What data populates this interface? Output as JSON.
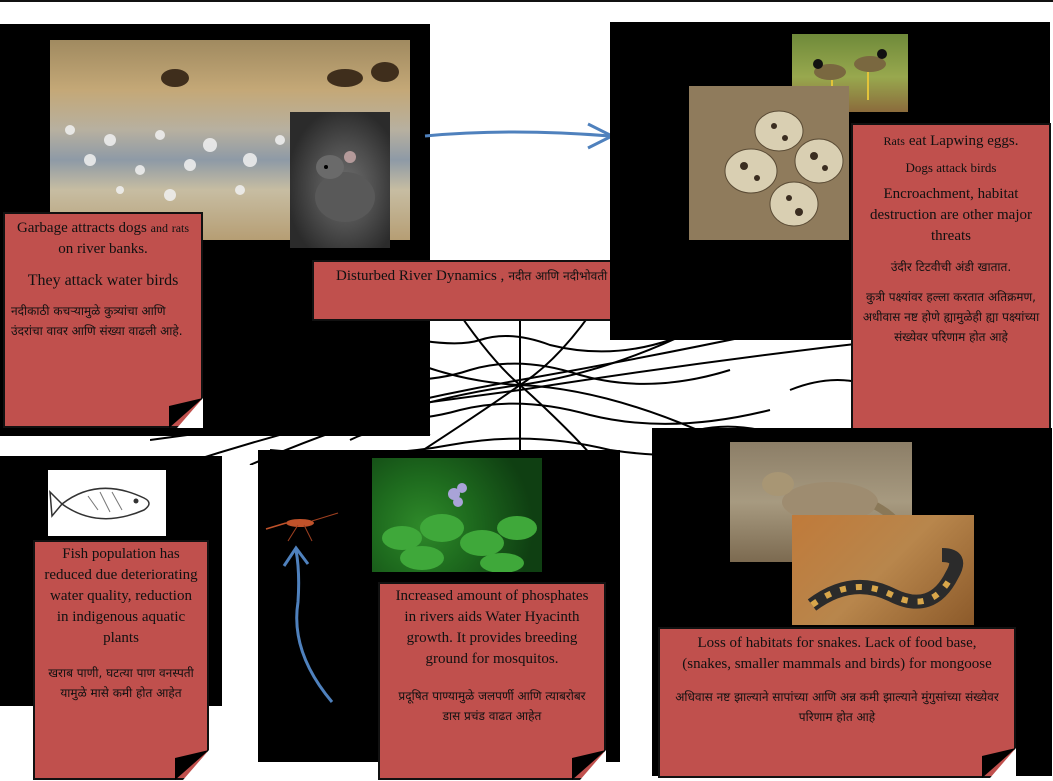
{
  "notes": {
    "garbage": {
      "en1_a": "Garbage attracts dogs",
      "en1_b": "and",
      "en1_c": "rats",
      "en1_d": "on river banks.",
      "en2": "They attack water birds",
      "mr": "नदीकाठी कचऱ्यामुळे कुत्र्यांचा आणि उंदरांचा वावर आणि संख्या वाढली आहे."
    },
    "river": {
      "en": "Disturbed River Dynamics ,",
      "mr": "नदीत आणि नदीभोवती होणारे बदल"
    },
    "lapwing": {
      "en1_a": "Rats",
      "en1_b": "eat Lapwing eggs.",
      "en2": "Dogs attack birds",
      "en3": "Encroachment, habitat destruction are other major threats",
      "mr1": "उंदीर टिटवीची अंडी खातात.",
      "mr2": "कुत्री पक्ष्यांवर हल्ला करतात अतिक्रमण, अधीवास नष्ट होणे ह्यामुळेही ह्या पक्ष्यांच्या संख्येवर परिणाम होत आहे"
    },
    "fish": {
      "en": "Fish population has reduced due deteriorating water quality, reduction in indigenous aquatic plants",
      "mr": "खराब पाणी, घटत्या पाण वनस्पती यामुळे मासे कमी होत आहेत"
    },
    "hyacinth": {
      "en": "Increased amount of phosphates in rivers aids Water Hyacinth growth. It provides breeding ground for mosquitos.",
      "mr": "प्रदूषित पाण्यामुळे जलपर्णी आणि त्याबरोबर डास प्रचंड वाढत आहेत"
    },
    "snake": {
      "en": "Loss of habitats for snakes. Lack of food base, (snakes, smaller mammals and birds) for mongoose",
      "mr": "अधिवास नष्ट झाल्याने सापांच्या आणि अन्न कमी झाल्याने  मुंगुसांच्या संख्येवर परिणाम होत आहे"
    }
  },
  "colors": {
    "note_fill": "#c0504d",
    "arrow": "#4f81bd",
    "panel": "#000000"
  },
  "icons": {
    "fish": "fish-drawing-icon",
    "mosquito": "mosquito-icon",
    "web": "spider-web-drawing"
  }
}
